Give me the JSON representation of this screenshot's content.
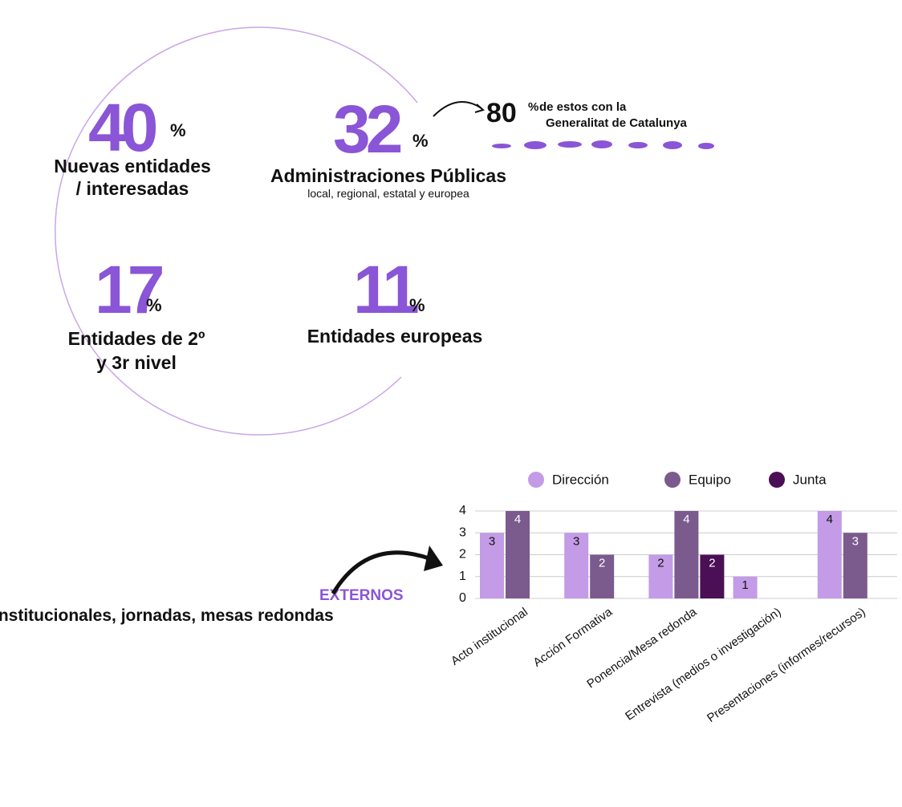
{
  "stats": [
    {
      "value": "40",
      "unit": "%",
      "label": [
        "Nuevas entidades",
        "/ interesadas"
      ]
    },
    {
      "value": "32",
      "unit": "%",
      "label": [
        "Administraciones Públicas"
      ],
      "sublabel": "local, regional, estatal y europea"
    },
    {
      "value": "17",
      "unit": "%",
      "label": [
        "Entidades de 2º",
        "y 3r nivel"
      ]
    },
    {
      "value": "11",
      "unit": "%",
      "label": [
        "Entidades europeas"
      ]
    }
  ],
  "note": {
    "value": "80",
    "unit": "%",
    "text": [
      "de estos con la",
      "Generalitat de Catalunya"
    ]
  },
  "section": {
    "title": "EXTERNOS",
    "subtitle": "institucionales, jornadas, mesas redondas"
  },
  "chart_data": {
    "type": "bar",
    "categories": [
      "Acto institucional",
      "Acción Formativa",
      "Ponencia/Mesa redonda",
      "Entrevista (medios o investigación)",
      "Presentaciones (informes/recursos)"
    ],
    "series": [
      {
        "name": "Dirección",
        "color": "#c39be6",
        "values": [
          3,
          3,
          2,
          1,
          4
        ]
      },
      {
        "name": "Equipo",
        "color": "#7b5a8e",
        "values": [
          4,
          2,
          4,
          null,
          3
        ]
      },
      {
        "name": "Junta",
        "color": "#4a0f55",
        "values": [
          null,
          null,
          2,
          null,
          null
        ]
      }
    ],
    "ylim": [
      0,
      4
    ],
    "yticks": [
      0,
      1,
      2,
      3,
      4
    ],
    "grid": true,
    "legend": "top"
  }
}
